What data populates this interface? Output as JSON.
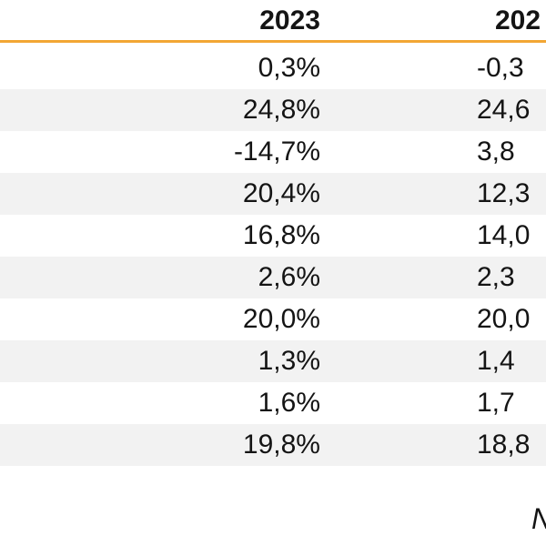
{
  "table": {
    "columns": [
      "2023",
      "202"
    ],
    "rows": [
      [
        "0,3%",
        "-0,3"
      ],
      [
        "24,8%",
        "24,6"
      ],
      [
        "-14,7%",
        "3,8"
      ],
      [
        "20,4%",
        "12,3"
      ],
      [
        "16,8%",
        "14,0"
      ],
      [
        "2,6%",
        "2,3"
      ],
      [
        "20,0%",
        "20,0"
      ],
      [
        "1,3%",
        "1,4"
      ],
      [
        "1,6%",
        "1,7"
      ],
      [
        "19,8%",
        "18,8"
      ]
    ]
  },
  "footer": {
    "text": "N"
  },
  "colors": {
    "header_rule": "#f2a634",
    "row_shade": "#f2f2f2"
  }
}
